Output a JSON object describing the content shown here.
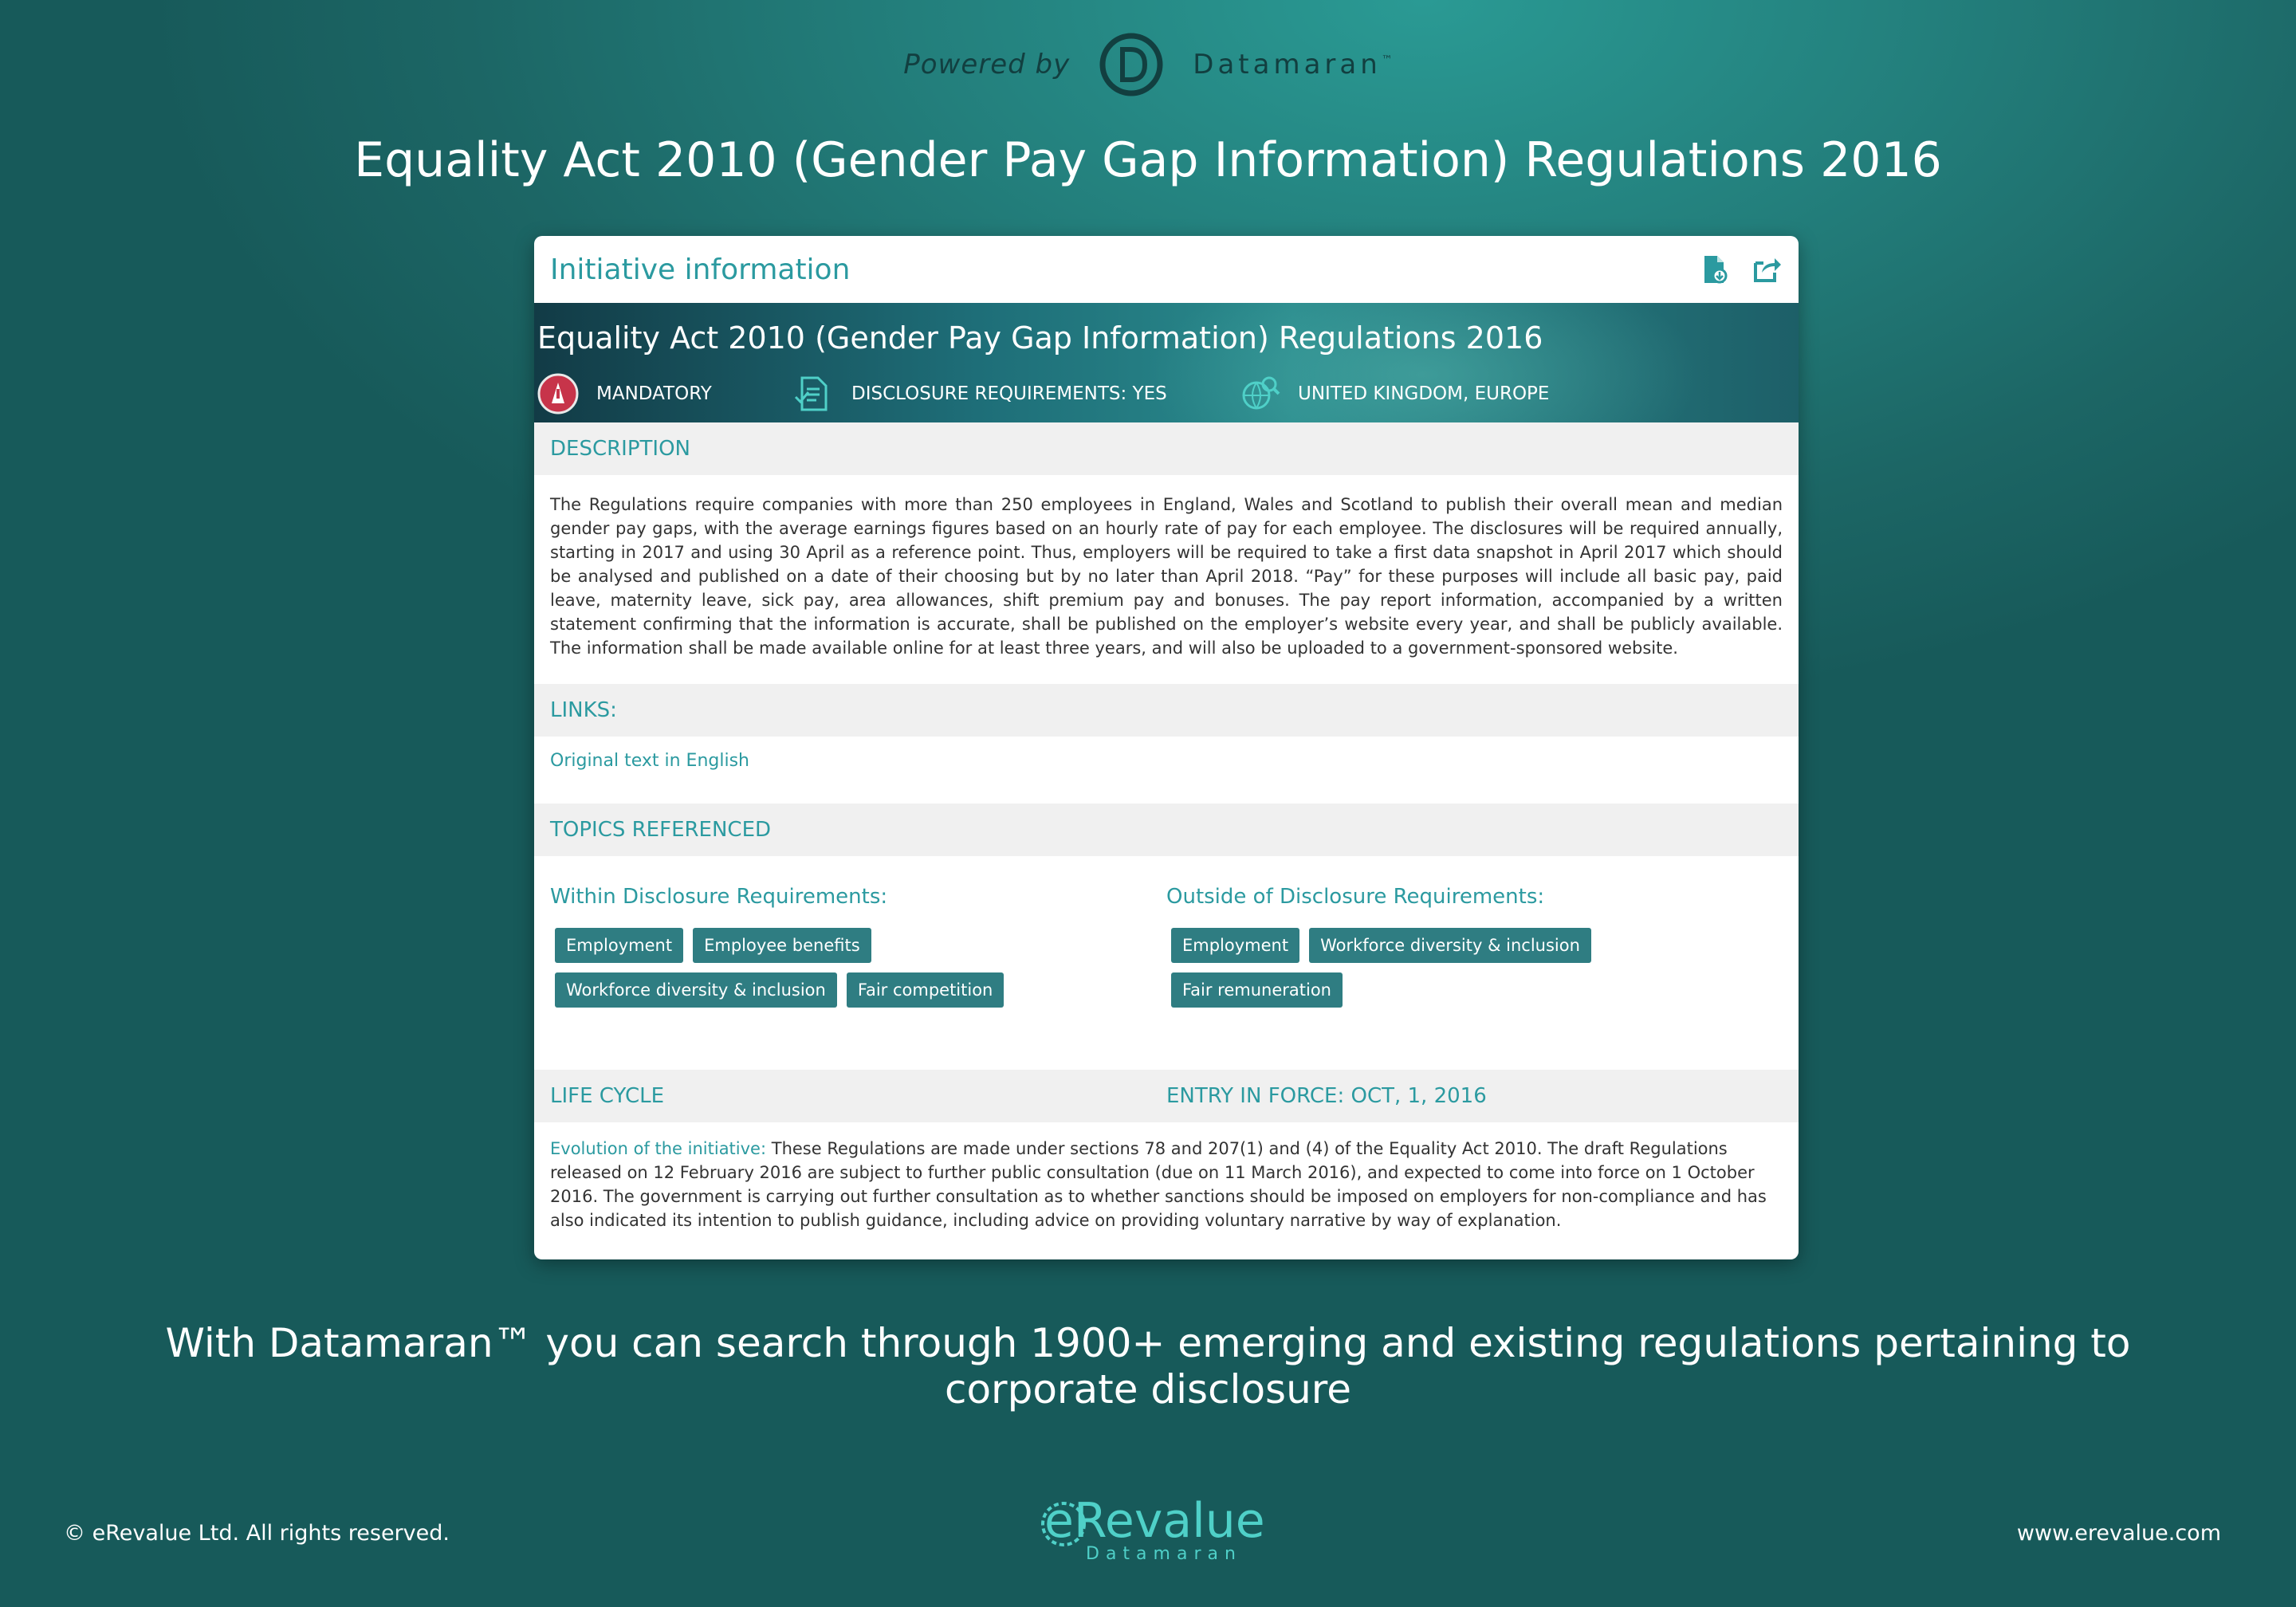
{
  "header": {
    "powered_by": "Powered by",
    "brand": "Datamaran",
    "brand_tm": "™",
    "main_title": "Equality Act 2010 (Gender Pay Gap Information) Regulations 2016"
  },
  "card": {
    "title": "Initiative information",
    "tools": [
      "export-document-icon",
      "share-icon"
    ],
    "banner": {
      "title": "Equality Act 2010 (Gender Pay Gap Information) Regulations 2016",
      "tag_mandatory": "MANDATORY",
      "tag_disclosure": "DISCLOSURE REQUIREMENTS: YES",
      "tag_region": "UNITED KINGDOM, EUROPE"
    },
    "description": {
      "heading": "DESCRIPTION",
      "text": "The Regulations require companies with more than 250 employees in England, Wales and Scotland to publish their overall mean and median gender pay gaps, with the average earnings figures based on an hourly rate of pay for each employee. The disclosures will be required annually, starting in 2017 and using 30 April as a reference point. Thus, employers will be required to take a first data snapshot in April 2017 which should be analysed and published on a date of their choosing but by no later than April 2018. “Pay” for these purposes will include all basic pay, paid leave, maternity leave, sick pay, area allowances, shift premium pay and bonuses. The pay report information, accompanied by a written statement confirming that the information is accurate, shall be published on the employer’s website every year, and shall be publicly available. The information shall be made available online for at least three years, and will also be uploaded to a government-sponsored website."
    },
    "links": {
      "heading": "LINKS:",
      "items": [
        "Original text in English"
      ]
    },
    "topics": {
      "heading": "TOPICS REFERENCED",
      "within": {
        "label": "Within Disclosure Requirements:",
        "chips": [
          "Employment",
          "Employee benefits",
          "Workforce diversity & inclusion",
          "Fair competition"
        ]
      },
      "outside": {
        "label": "Outside of Disclosure Requirements:",
        "chips": [
          "Employment",
          "Workforce diversity & inclusion",
          "Fair remuneration"
        ]
      }
    },
    "lifecycle": {
      "heading": "LIFE CYCLE",
      "entry": "ENTRY IN FORCE: OCT, 1, 2016",
      "lead": "Evolution of the initiative:",
      "text": " These Regulations are made under sections 78 and 207(1) and (4) of the Equality Act 2010. The draft Regulations released on 12 February 2016 are subject to further public consultation (due on 11 March 2016), and expected to come into force on 1 October 2016. The government is carrying out further consultation as to whether sanctions should be imposed on employers for non-compliance and has also indicated its intention to publish guidance, including advice on providing voluntary narrative by way of explanation."
    }
  },
  "tagline": {
    "line1": "With Datamaran™ you can search through 1900+ emerging and existing regulations pertaining to",
    "line2": "corporate disclosure"
  },
  "footer": {
    "copyright": "© eRevalue Ltd. All rights reserved.",
    "logo_text": "eRevalue",
    "logo_sub": "Datamaran",
    "url": "www.erevalue.com"
  },
  "colors": {
    "accent": "#2b9aa0",
    "chip": "#2f7d82",
    "background": "#1f7372"
  }
}
